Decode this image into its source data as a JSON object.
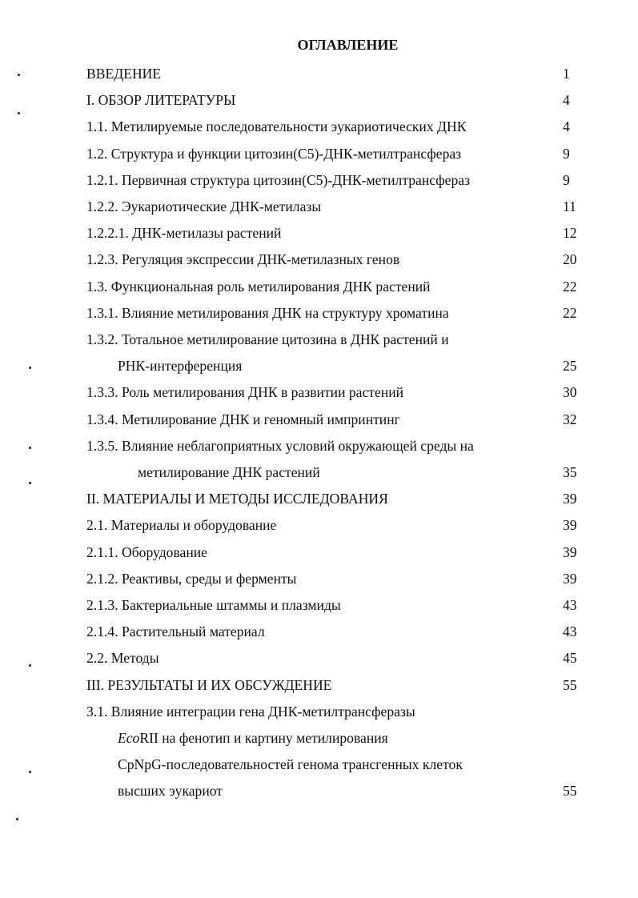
{
  "title": "ОГЛАВЛЕНИЕ",
  "rows": [
    {
      "text": "ВВЕДЕНИЕ",
      "page": "1",
      "indent": 0
    },
    {
      "text": "I. ОБЗОР ЛИТЕРАТУРЫ",
      "page": "4",
      "indent": 0
    },
    {
      "text": "1.1. Метилируемые последовательности эукариотических ДНК",
      "page": "4",
      "indent": 0
    },
    {
      "text": "1.2. Структура и функции цитозин(С5)-ДНК-метилтрансфераз",
      "page": "9",
      "indent": 0
    },
    {
      "text": "1.2.1. Первичная структура цитозин(С5)-ДНК-метилтрансфераз",
      "page": "9",
      "indent": 0
    },
    {
      "text": "1.2.2. Эукариотические ДНК-метилазы",
      "page": "11",
      "indent": 0
    },
    {
      "text": "1.2.2.1. ДНК-метилазы растений",
      "page": "12",
      "indent": 0
    },
    {
      "text": "1.2.3. Регуляция экспрессии ДНК-метилазных генов",
      "page": "20",
      "indent": 0
    },
    {
      "text": "1.3. Функциональная роль метилирования ДНК растений",
      "page": "22",
      "indent": 0
    },
    {
      "text": "1.3.1. Влияние метилирования ДНК на структуру хроматина",
      "page": "22",
      "indent": 0
    },
    {
      "text": "1.3.2. Тотальное метилирование цитозина в ДНК растений и",
      "page": "",
      "indent": 0
    },
    {
      "text": "РНК-интерференция",
      "page": "25",
      "indent": 1
    },
    {
      "text": "1.3.3. Роль метилирования ДНК в развитии растений",
      "page": "30",
      "indent": 0
    },
    {
      "text": "1.3.4. Метилирование ДНК и геномный импринтинг",
      "page": "32",
      "indent": 0
    },
    {
      "text": "1.3.5. Влияние неблагоприятных условий окружающей среды на",
      "page": "",
      "indent": 0
    },
    {
      "text": "метилирование ДНК растений",
      "page": "35",
      "indent": 2
    },
    {
      "text": "II. МАТЕРИАЛЫ И МЕТОДЫ ИССЛЕДОВАНИЯ",
      "page": "39",
      "indent": 0
    },
    {
      "text": "2.1. Материалы и оборудование",
      "page": "39",
      "indent": 0
    },
    {
      "text": "2.1.1. Оборудование",
      "page": "39",
      "indent": 0
    },
    {
      "text": "2.1.2. Реактивы, среды и ферменты",
      "page": "39",
      "indent": 0
    },
    {
      "text": "2.1.3. Бактериальные штаммы и плазмиды",
      "page": "43",
      "indent": 0
    },
    {
      "text": "2.1.4. Растительный материал",
      "page": "43",
      "indent": 0
    },
    {
      "text": "2.2. Методы",
      "page": "45",
      "indent": 0
    },
    {
      "text": "III. РЕЗУЛЬТАТЫ И ИХ ОБСУЖДЕНИЕ",
      "page": "55",
      "indent": 0
    },
    {
      "text": "3.1. Влияние интеграции гена ДНК-метилтрансферазы",
      "page": "",
      "indent": 0
    },
    {
      "italic": "Eco",
      "text": "RII на фенотип и картину метилирования",
      "page": "",
      "indent": 1
    },
    {
      "text": "CpNpG-последовательностей генома трансгенных клеток",
      "page": "",
      "indent": 1
    },
    {
      "text": "высших эукариот",
      "page": "55",
      "indent": 1
    }
  ]
}
